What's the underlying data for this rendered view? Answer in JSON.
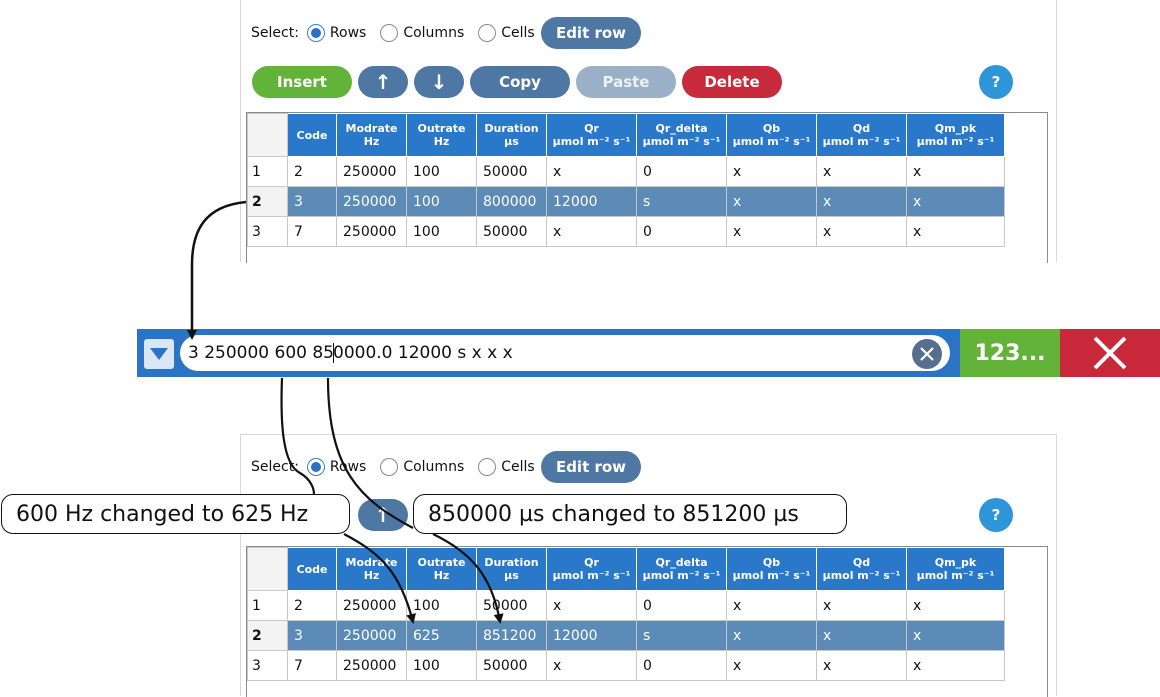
{
  "select": {
    "label": "Select:",
    "options": [
      "Rows",
      "Columns",
      "Cells"
    ],
    "selected": "Rows",
    "edit_row_label": "Edit row"
  },
  "toolbar": {
    "insert": "Insert",
    "move_up": "↑",
    "move_down": "↓",
    "copy": "Copy",
    "paste": "Paste",
    "delete": "Delete",
    "help": "?"
  },
  "table": {
    "columns": [
      {
        "name": "Code",
        "unit": ""
      },
      {
        "name": "Modrate",
        "unit": "Hz"
      },
      {
        "name": "Outrate",
        "unit": "Hz"
      },
      {
        "name": "Duration",
        "unit": "µs"
      },
      {
        "name": "Qr",
        "unit": "µmol m⁻² s⁻¹"
      },
      {
        "name": "Qr_delta",
        "unit": "µmol m⁻² s⁻¹"
      },
      {
        "name": "Qb",
        "unit": "µmol m⁻² s⁻¹"
      },
      {
        "name": "Qd",
        "unit": "µmol m⁻² s⁻¹"
      },
      {
        "name": "Qm_pk",
        "unit": "µmol m⁻² s⁻¹"
      }
    ],
    "rows_before": [
      {
        "num": "1",
        "cells": [
          "2",
          "250000",
          "100",
          "50000",
          "x",
          "0",
          "x",
          "x",
          "x"
        ]
      },
      {
        "num": "2",
        "cells": [
          "3",
          "250000",
          "100",
          "800000",
          "12000",
          "s",
          "x",
          "x",
          "x"
        ]
      },
      {
        "num": "3",
        "cells": [
          "7",
          "250000",
          "100",
          "50000",
          "x",
          "0",
          "x",
          "x",
          "x"
        ]
      }
    ],
    "rows_after": [
      {
        "num": "1",
        "cells": [
          "2",
          "250000",
          "100",
          "50000",
          "x",
          "0",
          "x",
          "x",
          "x"
        ]
      },
      {
        "num": "2",
        "cells": [
          "3",
          "250000",
          "625",
          "851200",
          "12000",
          "s",
          "x",
          "x",
          "x"
        ]
      },
      {
        "num": "3",
        "cells": [
          "7",
          "250000",
          "100",
          "50000",
          "x",
          "0",
          "x",
          "x",
          "x"
        ]
      }
    ],
    "selected_row": "2"
  },
  "editor": {
    "text_before_cursor": "3 250000 600 85",
    "text_after_cursor": "0000.0 12000 s x x x",
    "keypad_label": "123..."
  },
  "annotations": {
    "outrate_change": "600 Hz changed to 625 Hz",
    "duration_change": "850000 µs changed to 851200 µs"
  },
  "colors": {
    "header_blue": "#2a78c9",
    "selected_row": "#5b8bb6",
    "insert_green": "#62b33a",
    "delete_red": "#c72a3a",
    "button_blue": "#4e77a3",
    "editbar_blue": "#2b73c4"
  }
}
